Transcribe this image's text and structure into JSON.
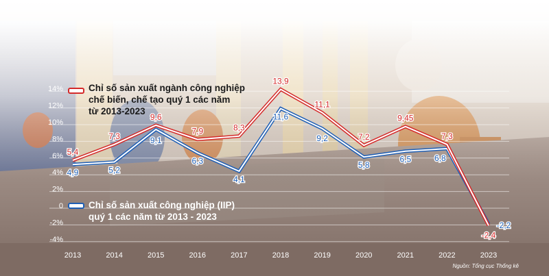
{
  "chart_data": {
    "type": "line",
    "title": "",
    "xlabel": "",
    "ylabel": "",
    "categories": [
      "2013",
      "2014",
      "2015",
      "2016",
      "2017",
      "2018",
      "2019",
      "2020",
      "2021",
      "2022",
      "2023"
    ],
    "series": [
      {
        "name": "Chỉ số sản xuất ngành công nghiệp chế biến, chế tạo quý 1 các năm từ 2013-2023",
        "color": "#d42a2a",
        "values": [
          5.4,
          7.3,
          9.6,
          7.9,
          8.3,
          13.9,
          11.1,
          7.2,
          9.45,
          7.3,
          -2.4
        ],
        "labels": [
          "5,4",
          "7,3",
          "9,6",
          "7,9",
          "8,3",
          "13,9",
          "11,1",
          "7,2",
          "9,45",
          "7,3",
          "-2,4"
        ]
      },
      {
        "name": "Chỉ số sản xuất công nghiệp (IIP) quý 1 các năm từ 2013 - 2023",
        "color": "#1f5fb5",
        "values": [
          4.9,
          5.2,
          9.1,
          6.3,
          4.1,
          11.6,
          9.2,
          5.8,
          6.5,
          6.8,
          -2.2
        ],
        "labels": [
          "4,9",
          "5,2",
          "9,1",
          "6,3",
          "4,1",
          "11,6",
          "9,2",
          "5,8",
          "6,5",
          "6,8",
          "-2,2"
        ]
      }
    ],
    "yticks": [
      "14%",
      "12%",
      "10%",
      "8%",
      "6%",
      "4%",
      "2%",
      "0",
      "-2%",
      "-4%"
    ],
    "ytick_values": [
      14,
      12,
      10,
      8,
      6,
      4,
      2,
      0,
      -2,
      -4
    ],
    "ylim": [
      -4,
      14
    ],
    "grid": true,
    "legend_position": "inside-left"
  },
  "legend": {
    "red_line1": "Chỉ số sản xuất ngành công nghiệp",
    "red_line2": "chế biến, chế tạo quý 1 các năm",
    "red_line3": "từ 2013-2023",
    "blue_line1": "Chỉ số sản xuất công nghiệp (IIP)",
    "blue_line2": "quý 1 các năm từ 2013 - 2023"
  },
  "source": "Nguồn: Tổng cục Thống kê"
}
